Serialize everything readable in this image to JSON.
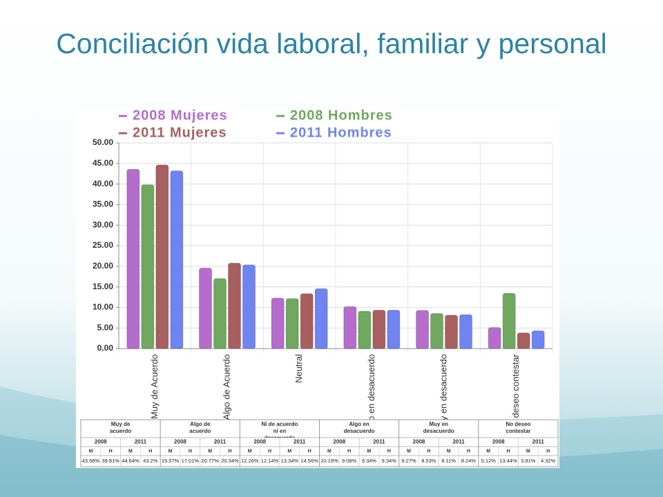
{
  "title": "Conciliación vida laboral, familiar y personal",
  "chart_data": {
    "type": "bar",
    "categories": [
      "Muy de Acuerdo",
      "Algo de Acuerdo",
      "Neutral",
      "Algo en desacuerdo",
      "Muy en desacuerdo",
      "No deseo contestar"
    ],
    "series": [
      {
        "name": "2008 Mujeres",
        "color": "#b56ccc",
        "values": [
          43.58,
          19.57,
          12.26,
          10.19,
          9.27,
          5.12
        ],
        "value_labels": [
          "43.58%",
          "19.57%",
          "12.26%",
          "10.19%",
          "9.27%",
          "5.12%"
        ]
      },
      {
        "name": "2008 Hombres",
        "color": "#6fa85e",
        "values": [
          39.81,
          17.01,
          12.14,
          9.08,
          8.53,
          13.44
        ],
        "value_labels": [
          "39.81%",
          "17.01%",
          "12.14%",
          "9.08%",
          "8.53%",
          "13.44%"
        ]
      },
      {
        "name": "2011 Mujeres",
        "color": "#a85f5f",
        "values": [
          44.64,
          20.77,
          13.34,
          9.34,
          8.11,
          3.81
        ],
        "value_labels": [
          "44.64%",
          "20.77%",
          "13.34%",
          "9.34%",
          "8.11%",
          "3.81%"
        ]
      },
      {
        "name": "2011 Hombres",
        "color": "#6f84f2",
        "values": [
          43.2,
          20.34,
          14.56,
          9.34,
          8.24,
          4.32
        ],
        "value_labels": [
          "43.2%",
          "20.34%",
          "14.56%",
          "9.34%",
          "8.24%",
          "4.32%"
        ]
      }
    ],
    "ylim": [
      0,
      50
    ],
    "yticks": [
      {
        "value": 0,
        "label": "0.00"
      },
      {
        "value": 5,
        "label": "5.00"
      },
      {
        "value": 10,
        "label": "10.00"
      },
      {
        "value": 15,
        "label": "15.00"
      },
      {
        "value": 20,
        "label": "20.00"
      },
      {
        "value": 25,
        "label": "25.00"
      },
      {
        "value": 30,
        "label": "30.00"
      },
      {
        "value": 35,
        "label": "35.00"
      },
      {
        "value": 40,
        "label": "40.00"
      },
      {
        "value": 45,
        "label": "45.00"
      },
      {
        "value": 50,
        "label": "50.00"
      }
    ],
    "grid": true
  },
  "table": {
    "groups": [
      "Muy de acuerdo",
      "Algo de acuerdo",
      "Ni de acuerdo ni en desacuerdo",
      "Algo en desacuerdo",
      "Muy en desacuerdo",
      "No deseo contestar"
    ],
    "years": [
      "2008",
      "2011"
    ],
    "sexes": [
      "M",
      "H"
    ]
  }
}
